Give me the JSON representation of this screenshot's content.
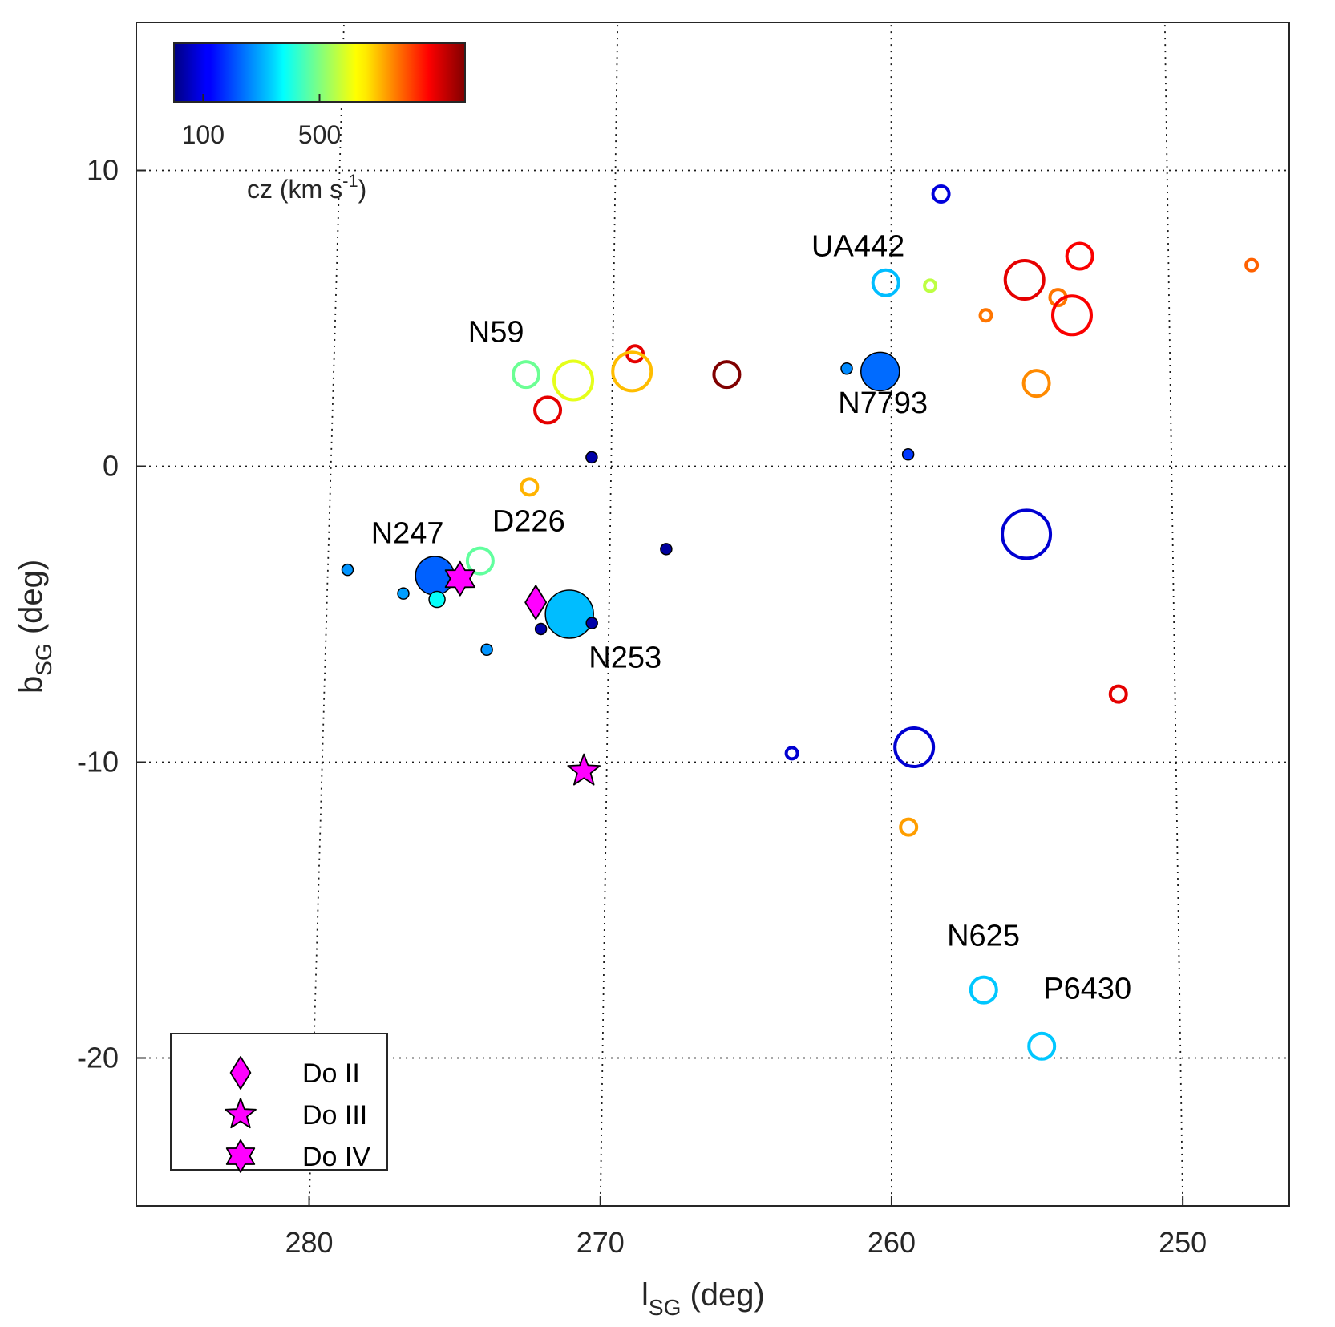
{
  "chart_data": {
    "type": "scatter",
    "title": "",
    "xlabel": "l",
    "xlabel_sub": "SG",
    "xlabel_unit": " (deg)",
    "ylabel": "b",
    "ylabel_sub": "SG",
    "ylabel_unit": " (deg)",
    "xlim": [
      287.5,
      245.5
    ],
    "ylim": [
      -25,
      15
    ],
    "x_reversed": true,
    "xticks": [
      280,
      270,
      260,
      250
    ],
    "yticks": [
      10,
      0,
      -10,
      -20
    ],
    "xtick_labels": [
      "280",
      "270",
      "260",
      "250"
    ],
    "ytick_labels": [
      "10",
      "0",
      "-10",
      "-20"
    ],
    "grid": "dotted curved graticule",
    "colorbar": {
      "label": "cz (km s",
      "label_sup": "-1",
      "label_end": ")",
      "range": [
        0,
        1000
      ],
      "ticks": [
        100,
        500
      ],
      "tick_labels": [
        "100",
        "500"
      ],
      "colormap": "jet",
      "placement": "top-left"
    },
    "galaxies": [
      {
        "l": 258.2,
        "b": 9.2,
        "cz": 90,
        "size": "small",
        "filled": false
      },
      {
        "l": 260.2,
        "b": 6.2,
        "cz": 310,
        "size": "medium",
        "filled": false
      },
      {
        "l": 258.6,
        "b": 6.1,
        "cz": 560,
        "size": "tiny",
        "filled": false
      },
      {
        "l": 255.2,
        "b": 6.3,
        "cz": 900,
        "size": "large",
        "filled": false
      },
      {
        "l": 253.2,
        "b": 7.1,
        "cz": 880,
        "size": "medium",
        "filled": false
      },
      {
        "l": 247.0,
        "b": 6.8,
        "cz": 780,
        "size": "tiny",
        "filled": false
      },
      {
        "l": 254.0,
        "b": 5.7,
        "cz": 760,
        "size": "small",
        "filled": false
      },
      {
        "l": 256.6,
        "b": 5.1,
        "cz": 760,
        "size": "tiny",
        "filled": false
      },
      {
        "l": 253.5,
        "b": 5.1,
        "cz": 880,
        "size": "large",
        "filled": false
      },
      {
        "l": 254.8,
        "b": 2.8,
        "cz": 740,
        "size": "medium",
        "filled": false
      },
      {
        "l": 269.2,
        "b": 3.8,
        "cz": 900,
        "size": "small",
        "filled": false
      },
      {
        "l": 273.1,
        "b": 3.1,
        "cz": 480,
        "size": "medium",
        "filled": false
      },
      {
        "l": 271.4,
        "b": 2.9,
        "cz": 600,
        "size": "large",
        "filled": false
      },
      {
        "l": 269.3,
        "b": 3.2,
        "cz": 690,
        "size": "large",
        "filled": false
      },
      {
        "l": 265.9,
        "b": 3.1,
        "cz": 1000,
        "size": "medium",
        "filled": false
      },
      {
        "l": 272.3,
        "b": 1.9,
        "cz": 900,
        "size": "medium",
        "filled": false
      },
      {
        "l": 261.6,
        "b": 3.3,
        "cz": 260,
        "size": "tiny",
        "filled": true
      },
      {
        "l": 260.4,
        "b": 3.2,
        "cz": 230,
        "size": "large",
        "filled": true
      },
      {
        "l": 270.7,
        "b": 0.3,
        "cz": 40,
        "size": "tiny",
        "filled": true
      },
      {
        "l": 259.4,
        "b": 0.4,
        "cz": 180,
        "size": "tiny",
        "filled": true
      },
      {
        "l": 272.9,
        "b": -0.7,
        "cz": 700,
        "size": "small",
        "filled": false
      },
      {
        "l": 274.6,
        "b": -3.2,
        "cz": 470,
        "size": "medium",
        "filled": false
      },
      {
        "l": 268.0,
        "b": -2.8,
        "cz": 30,
        "size": "tiny",
        "filled": true
      },
      {
        "l": 255.2,
        "b": -2.3,
        "cz": 80,
        "size": "xlarge",
        "filled": false
      },
      {
        "l": 279.3,
        "b": -3.5,
        "cz": 270,
        "size": "tiny",
        "filled": true
      },
      {
        "l": 276.2,
        "b": -3.7,
        "cz": 220,
        "size": "large",
        "filled": true
      },
      {
        "l": 277.3,
        "b": -4.3,
        "cz": 280,
        "size": "tiny",
        "filled": true
      },
      {
        "l": 276.1,
        "b": -4.5,
        "cz": 380,
        "size": "small",
        "filled": true
      },
      {
        "l": 271.4,
        "b": -5.0,
        "cz": 310,
        "size": "xlarge",
        "filled": true
      },
      {
        "l": 270.6,
        "b": -5.3,
        "cz": 40,
        "size": "tiny",
        "filled": true
      },
      {
        "l": 272.4,
        "b": -5.5,
        "cz": 40,
        "size": "tiny",
        "filled": true
      },
      {
        "l": 274.3,
        "b": -6.2,
        "cz": 270,
        "size": "tiny",
        "filled": true
      },
      {
        "l": 252.0,
        "b": -7.7,
        "cz": 900,
        "size": "small",
        "filled": false
      },
      {
        "l": 263.5,
        "b": -9.7,
        "cz": 80,
        "size": "tiny",
        "filled": false
      },
      {
        "l": 259.2,
        "b": -9.5,
        "cz": 80,
        "size": "large",
        "filled": false
      },
      {
        "l": 259.4,
        "b": -12.2,
        "cz": 720,
        "size": "small",
        "filled": false
      },
      {
        "l": 256.8,
        "b": -17.7,
        "cz": 320,
        "size": "medium",
        "filled": false
      },
      {
        "l": 254.8,
        "b": -19.6,
        "cz": 320,
        "size": "medium",
        "filled": false
      }
    ],
    "annotations": [
      {
        "text": "UA442",
        "l": 261.2,
        "b": 7.1
      },
      {
        "text": "N59",
        "l": 274.2,
        "b": 4.2
      },
      {
        "text": "N7793",
        "l": 260.3,
        "b": 1.8
      },
      {
        "text": "N247",
        "l": 277.2,
        "b": -2.6
      },
      {
        "text": "D226",
        "l": 272.9,
        "b": -2.2
      },
      {
        "text": "N253",
        "l": 269.4,
        "b": -6.8
      },
      {
        "text": "N625",
        "l": 256.8,
        "b": -16.2
      },
      {
        "text": "P6430",
        "l": 253.2,
        "b": -18.0
      }
    ],
    "dwarfs": [
      {
        "name": "Do II",
        "marker": "diamond",
        "l": 272.6,
        "b": -4.6
      },
      {
        "name": "Do III",
        "marker": "star5",
        "l": 270.8,
        "b": -10.3
      },
      {
        "name": "Do IV",
        "marker": "star6",
        "l": 275.3,
        "b": -3.8
      }
    ],
    "marker_color": "#ff00ff",
    "legend": {
      "placement": "bottom-left",
      "entries": [
        {
          "label": "Do II",
          "marker": "diamond"
        },
        {
          "label": "Do III",
          "marker": "star5"
        },
        {
          "label": "Do IV",
          "marker": "star6"
        }
      ]
    }
  }
}
